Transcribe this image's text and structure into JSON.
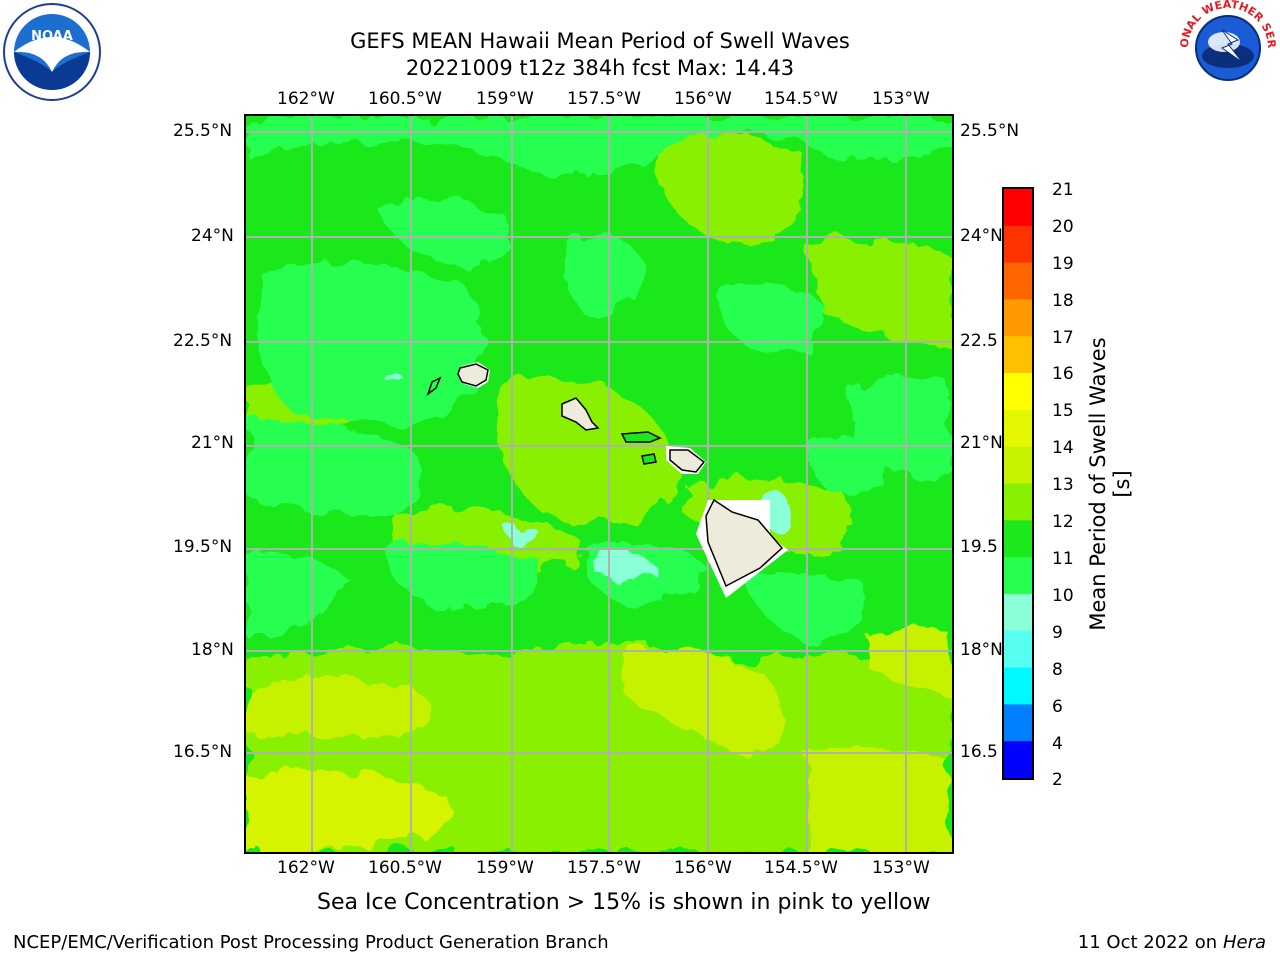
{
  "header": {
    "title_line1": "GEFS MEAN Hawaii Mean Period of Swell Waves",
    "title_line2": "20221009 t12z 384h fcst   Max: 14.43"
  },
  "logos": {
    "left_text": "NOAA",
    "right_text": "NATIONAL WEATHER SERVICE"
  },
  "map": {
    "lon_labels": [
      "162°W",
      "160.5°W",
      "159°W",
      "157.5°W",
      "156°W",
      "154.5°W",
      "153°W"
    ],
    "lat_labels": [
      "25.5°N",
      "24°N",
      "22.5°N",
      "21°N",
      "19.5°N",
      "18°N",
      "16.5°N"
    ],
    "lat_labels_right": [
      "25.5°N",
      "24°N",
      "22.5",
      "21°N",
      "19.5",
      "18°N",
      "16.5"
    ],
    "grid_color": "#b0b0b0",
    "land_color": "#eeebdc"
  },
  "colorbar": {
    "label": "Mean Period of Swell Waves [s]",
    "ticks": [
      "21",
      "20",
      "19",
      "18",
      "17",
      "16",
      "15",
      "14",
      "13",
      "12",
      "11",
      "10",
      "9",
      "8",
      "6",
      "4",
      "2"
    ],
    "colors": [
      "#ff0000",
      "#ff3300",
      "#ff6600",
      "#ff9900",
      "#ffc000",
      "#ffff00",
      "#e4f700",
      "#c6f200",
      "#88f000",
      "#1de81b",
      "#27ff4f",
      "#8affd8",
      "#57fff0",
      "#00f8ff",
      "#0080ff",
      "#0000ff"
    ]
  },
  "caption": "Sea Ice Concentration > 15% is shown in pink to yellow",
  "footer": {
    "left": "NCEP/EMC/Verification Post Processing Product Generation Branch",
    "right_date": "11 Oct 2022 on ",
    "right_host": "Hera"
  }
}
